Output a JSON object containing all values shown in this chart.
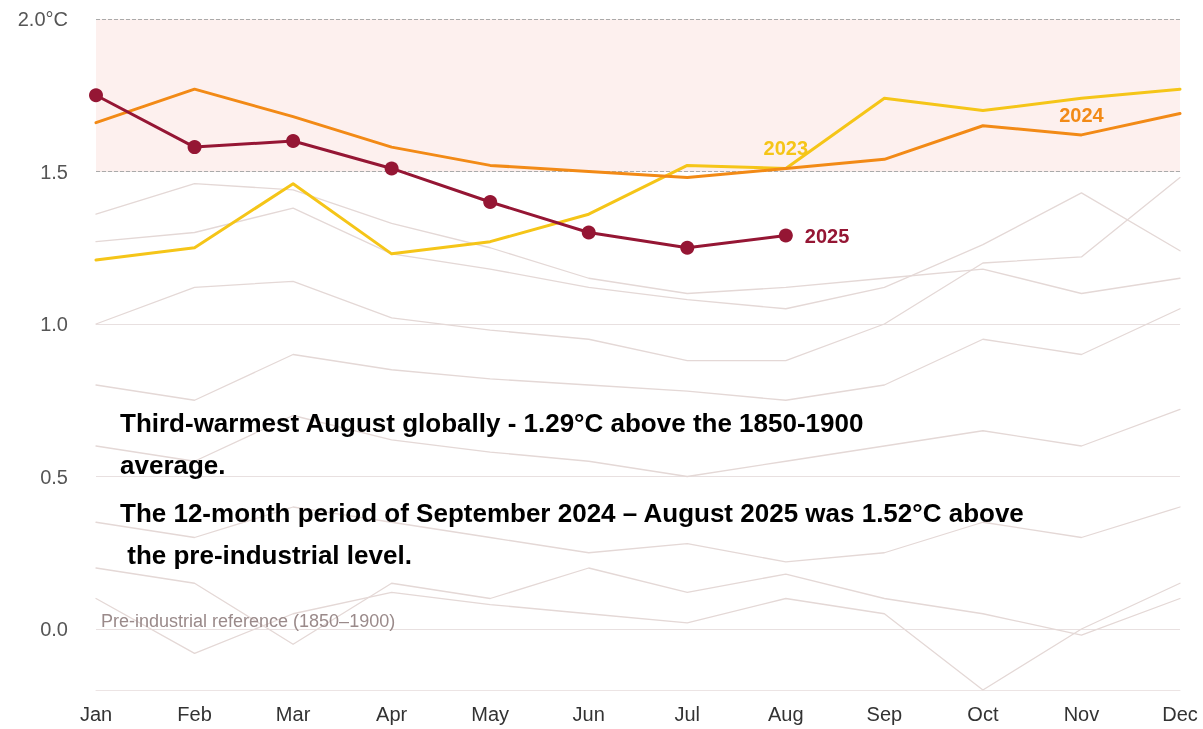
{
  "chart_data": {
    "type": "line",
    "categories": [
      "Jan",
      "Feb",
      "Mar",
      "Apr",
      "May",
      "Jun",
      "Jul",
      "Aug",
      "Sep",
      "Oct",
      "Nov",
      "Dec"
    ],
    "ylim": [
      -0.2,
      2.0
    ],
    "yticks": [
      {
        "value": 0,
        "label": "0.0"
      },
      {
        "value": 0.5,
        "label": "0.5"
      },
      {
        "value": 1,
        "label": "1.0"
      },
      {
        "value": 1.5,
        "label": "1.5"
      },
      {
        "value": 2,
        "label": "2.0°C"
      }
    ],
    "grid": "y",
    "legend": false,
    "line_style": "solid",
    "bands": [
      {
        "axis": "y",
        "from": 1.5,
        "to": 2.0,
        "color": "#fdf0ee"
      }
    ],
    "ref_lines": [
      {
        "axis": "y",
        "value": 1.5,
        "color": "#aaaaaa",
        "line_style": "dashed"
      },
      {
        "axis": "y",
        "value": 2.0,
        "color": "#aaaaaa",
        "line_style": "dashed"
      }
    ],
    "annotations": [
      "Third-warmest August globally - 1.29°C above the 1850-1900 average.",
      "The 12-month period of September 2024 – August 2025 was 1.52°C above the pre-industrial level.",
      "Pre-industrial reference (1850–1900)"
    ],
    "series": [
      {
        "color": "#e4d8d6",
        "marker": "none",
        "values": [
          1.36,
          1.46,
          1.44,
          1.33,
          1.25,
          1.15,
          1.1,
          1.12,
          1.15,
          1.18,
          1.1,
          1.15
        ]
      },
      {
        "color": "#e4d8d6",
        "marker": "none",
        "values": [
          1.27,
          1.3,
          1.38,
          1.23,
          1.18,
          1.12,
          1.08,
          1.05,
          1.12,
          1.26,
          1.43,
          1.24
        ]
      },
      {
        "color": "#e4d8d6",
        "marker": "none",
        "values": [
          1.0,
          1.12,
          1.14,
          1.02,
          0.98,
          0.95,
          0.88,
          0.88,
          1.0,
          1.2,
          1.22,
          1.48
        ]
      },
      {
        "color": "#e4d8d6",
        "marker": "none",
        "values": [
          0.8,
          0.75,
          0.9,
          0.85,
          0.82,
          0.8,
          0.78,
          0.75,
          0.8,
          0.95,
          0.9,
          1.05
        ]
      },
      {
        "color": "#e4d8d6",
        "marker": "none",
        "values": [
          0.6,
          0.55,
          0.7,
          0.62,
          0.58,
          0.55,
          0.5,
          0.55,
          0.6,
          0.65,
          0.6,
          0.72
        ]
      },
      {
        "color": "#e4d8d6",
        "marker": "none",
        "values": [
          0.35,
          0.3,
          0.4,
          0.35,
          0.3,
          0.25,
          0.28,
          0.22,
          0.25,
          0.35,
          0.3,
          0.4
        ]
      },
      {
        "color": "#e4d8d6",
        "marker": "none",
        "values": [
          0.1,
          -0.08,
          0.05,
          0.12,
          0.08,
          0.05,
          0.02,
          0.1,
          0.05,
          -0.2,
          0.0,
          0.15
        ]
      },
      {
        "color": "#e4d8d6",
        "marker": "none",
        "values": [
          0.2,
          0.15,
          -0.05,
          0.15,
          0.1,
          0.2,
          0.12,
          0.18,
          0.1,
          0.05,
          -0.02,
          0.1
        ]
      },
      {
        "name": "2023",
        "color": "#f5c518",
        "marker": "none",
        "values": [
          1.21,
          1.25,
          1.46,
          1.23,
          1.27,
          1.36,
          1.52,
          1.51,
          1.74,
          1.7,
          1.74,
          1.77
        ]
      },
      {
        "name": "2024",
        "color": "#f28a16",
        "marker": "none",
        "values": [
          1.66,
          1.77,
          1.68,
          1.58,
          1.52,
          1.5,
          1.48,
          1.51,
          1.54,
          1.65,
          1.62,
          1.69
        ]
      },
      {
        "name": "2025",
        "color": "#951634",
        "marker": "circle",
        "values": [
          1.75,
          1.58,
          1.6,
          1.51,
          1.4,
          1.3,
          1.25,
          1.29,
          null,
          null,
          null,
          null
        ]
      }
    ]
  }
}
